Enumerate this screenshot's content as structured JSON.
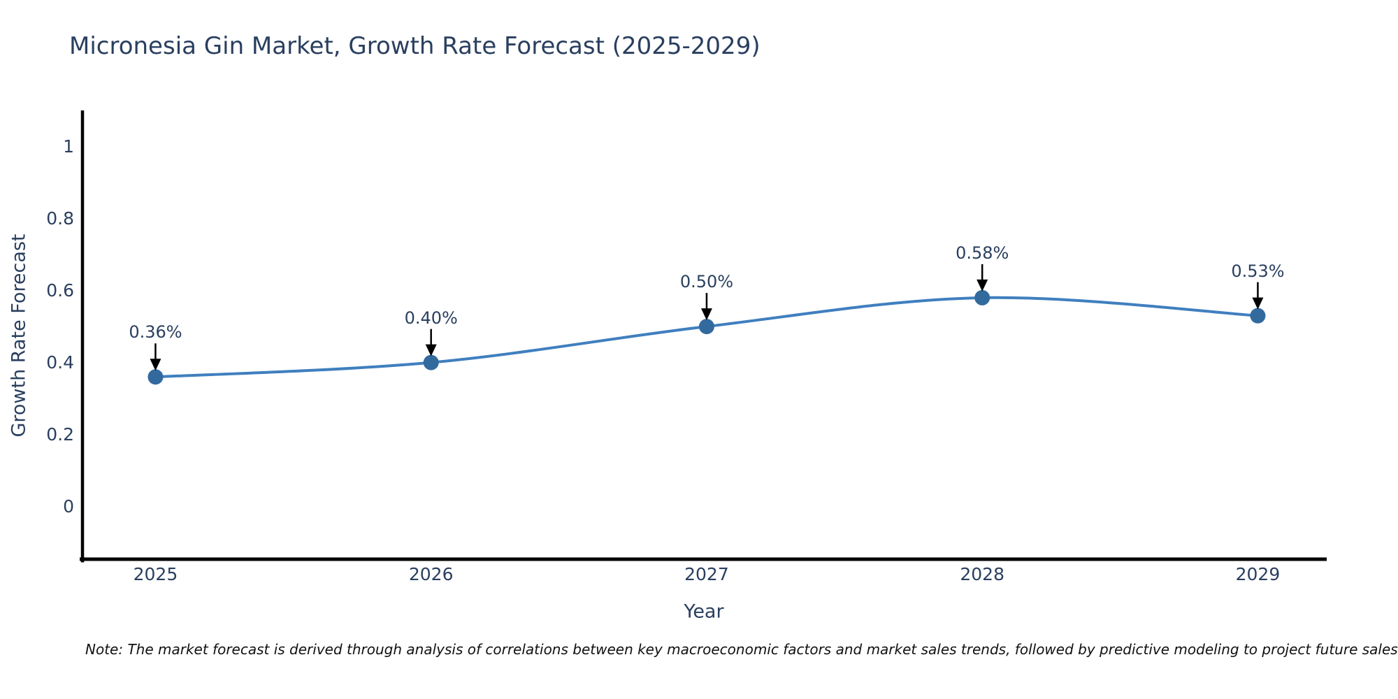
{
  "header": {
    "title": "Micronesia Gin Market, Growth Rate Forecast (2025-2029)"
  },
  "footnote": "Note: The market forecast is derived through analysis of correlations between key macroeconomic factors and market sales trends, followed by predictive modeling to project future sales",
  "chart_data": {
    "type": "line",
    "title": "Micronesia Gin Market, Growth Rate Forecast (2025-2029)",
    "xlabel": "Year",
    "ylabel": "Growth Rate Forecast",
    "x": [
      2025,
      2026,
      2027,
      2028,
      2029
    ],
    "x_tick_labels": [
      "2025",
      "2026",
      "2027",
      "2028",
      "2029"
    ],
    "values": [
      0.36,
      0.4,
      0.5,
      0.58,
      0.53
    ],
    "unit": "%",
    "point_labels": [
      "0.36%",
      "0.40%",
      "0.50%",
      "0.58%",
      "0.53%"
    ],
    "y_ticks": [
      0,
      0.2,
      0.4,
      0.6,
      0.8,
      1
    ],
    "y_tick_labels": [
      "0",
      "0.2",
      "0.4",
      "0.6",
      "0.8",
      "1"
    ],
    "xlim": [
      2024.73,
      2029.25
    ],
    "ylim": [
      -0.15,
      1.1
    ],
    "line_shape": "spline",
    "grid": false,
    "legend_position": "none",
    "annotation_style": "value label with downward black arrow above each marker",
    "colors": {
      "line": "#3f7fbf",
      "marker": "#336a9e",
      "axis": "#000000",
      "arrow": "#000000",
      "text": "#2a3f5f",
      "note_text": "#111111",
      "background": "#ffffff"
    }
  }
}
